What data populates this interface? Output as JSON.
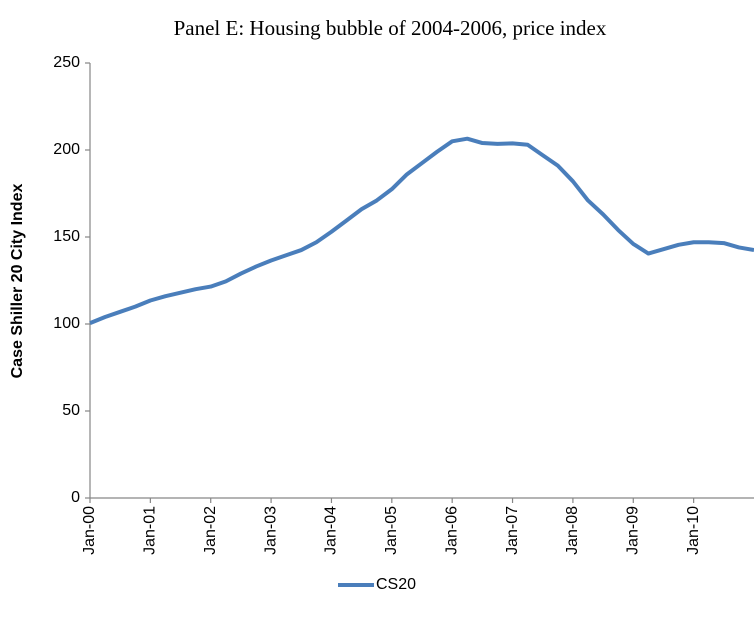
{
  "chart_data": {
    "type": "line",
    "title": "Panel E: Housing bubble of 2004-2006, price index",
    "y_label": "Case Shiller 20 City Index",
    "categories": [
      "Jan-00",
      null,
      null,
      null,
      "Jan-01",
      null,
      null,
      null,
      "Jan-02",
      null,
      null,
      null,
      "Jan-03",
      null,
      null,
      null,
      "Jan-04",
      null,
      null,
      null,
      "Jan-05",
      null,
      null,
      null,
      "Jan-06",
      null,
      null,
      null,
      "Jan-07",
      null,
      null,
      null,
      "Jan-08",
      null,
      null,
      null,
      "Jan-09",
      null,
      null,
      null,
      "Jan-10",
      null,
      null,
      null,
      null
    ],
    "series": [
      {
        "name": "CS20",
        "color": "#4a7ebb",
        "values": [
          100.5,
          104,
          107,
          110,
          113.5,
          116,
          118,
          120,
          121.5,
          124.5,
          129,
          133,
          136.5,
          139.5,
          142.5,
          147,
          153,
          159.5,
          166,
          171,
          177.5,
          186,
          192.5,
          199,
          205,
          206.5,
          204,
          203.5,
          203.8,
          203,
          197,
          191,
          182,
          171,
          163,
          154,
          146,
          140.5,
          143,
          145.5,
          147,
          147,
          146.5,
          144,
          142.5
        ]
      }
    ],
    "ylim": [
      0,
      250
    ],
    "yticks": [
      0,
      50,
      100,
      150,
      200,
      250
    ],
    "legend": "bottom"
  }
}
